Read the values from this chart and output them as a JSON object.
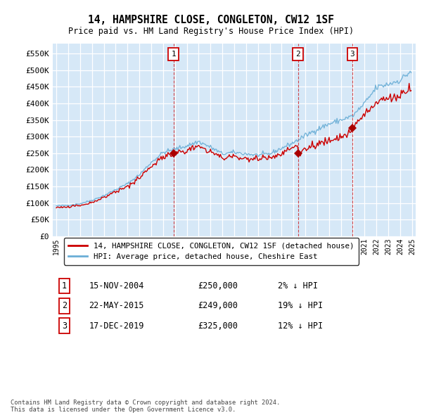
{
  "title": "14, HAMPSHIRE CLOSE, CONGLETON, CW12 1SF",
  "subtitle": "Price paid vs. HM Land Registry's House Price Index (HPI)",
  "ylabel_ticks": [
    "£0",
    "£50K",
    "£100K",
    "£150K",
    "£200K",
    "£250K",
    "£300K",
    "£350K",
    "£400K",
    "£450K",
    "£500K",
    "£550K"
  ],
  "ytick_values": [
    0,
    50000,
    100000,
    150000,
    200000,
    250000,
    300000,
    350000,
    400000,
    450000,
    500000,
    550000
  ],
  "ylim": [
    0,
    580000
  ],
  "xlim_start": 1994.7,
  "xlim_end": 2025.3,
  "background_color": "#d6e8f7",
  "plot_bg_color": "#d6e8f7",
  "fig_bg_color": "#ffffff",
  "hpi_color": "#6aaed6",
  "price_color": "#cc0000",
  "transaction_marker_color": "#aa0000",
  "legend_label_hpi": "HPI: Average price, detached house, Cheshire East",
  "legend_label_price": "14, HAMPSHIRE CLOSE, CONGLETON, CW12 1SF (detached house)",
  "transactions": [
    {
      "num": "1",
      "date": 2004.88,
      "price": 250000
    },
    {
      "num": "2",
      "date": 2015.38,
      "price": 249000
    },
    {
      "num": "3",
      "date": 2019.96,
      "price": 325000
    }
  ],
  "table_rows": [
    {
      "num": "1",
      "date": "15-NOV-2004",
      "price": "£250,000",
      "hpi": "2% ↓ HPI"
    },
    {
      "num": "2",
      "date": "22-MAY-2015",
      "price": "£249,000",
      "hpi": "19% ↓ HPI"
    },
    {
      "num": "3",
      "date": "17-DEC-2019",
      "price": "£325,000",
      "hpi": "12% ↓ HPI"
    }
  ],
  "footer": "Contains HM Land Registry data © Crown copyright and database right 2024.\nThis data is licensed under the Open Government Licence v3.0."
}
